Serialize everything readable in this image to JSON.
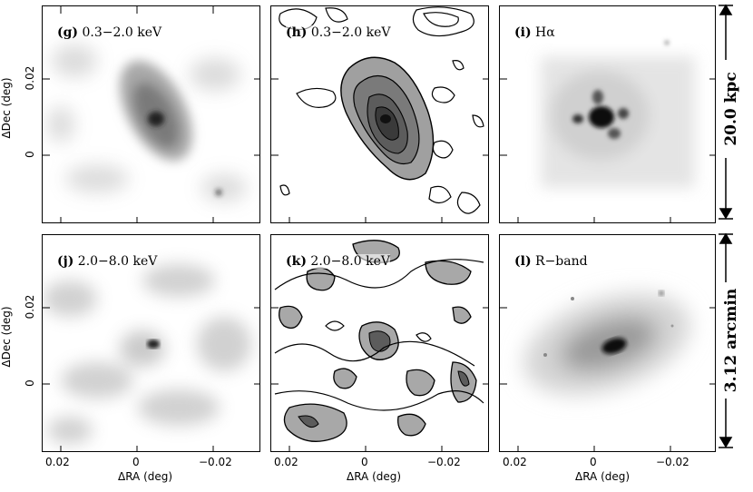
{
  "panels": {
    "g": {
      "letter": "(g)",
      "text": "0.3−2.0 keV"
    },
    "h": {
      "letter": "(h)",
      "text": "0.3−2.0 keV"
    },
    "i": {
      "letter": "(i)",
      "text": "Hα"
    },
    "j": {
      "letter": "(j)",
      "text": "2.0−8.0 keV"
    },
    "k": {
      "letter": "(k)",
      "text": "2.0−8.0 keV"
    },
    "l": {
      "letter": "(l)",
      "text": "R−band"
    }
  },
  "axes": {
    "y_ticks": [
      "0.02",
      "0"
    ],
    "y_label": "ΔDec (deg)",
    "x_ticks": [
      "0.02",
      "0",
      "−0.02"
    ],
    "x_label": "ΔRA (deg)"
  },
  "scale_bars": {
    "top": "20.0 kpc",
    "bottom": "3.12 arcmin"
  },
  "colors": {
    "frame": "#000000",
    "image_fill": "#8a8a8a",
    "background": "#ffffff"
  }
}
